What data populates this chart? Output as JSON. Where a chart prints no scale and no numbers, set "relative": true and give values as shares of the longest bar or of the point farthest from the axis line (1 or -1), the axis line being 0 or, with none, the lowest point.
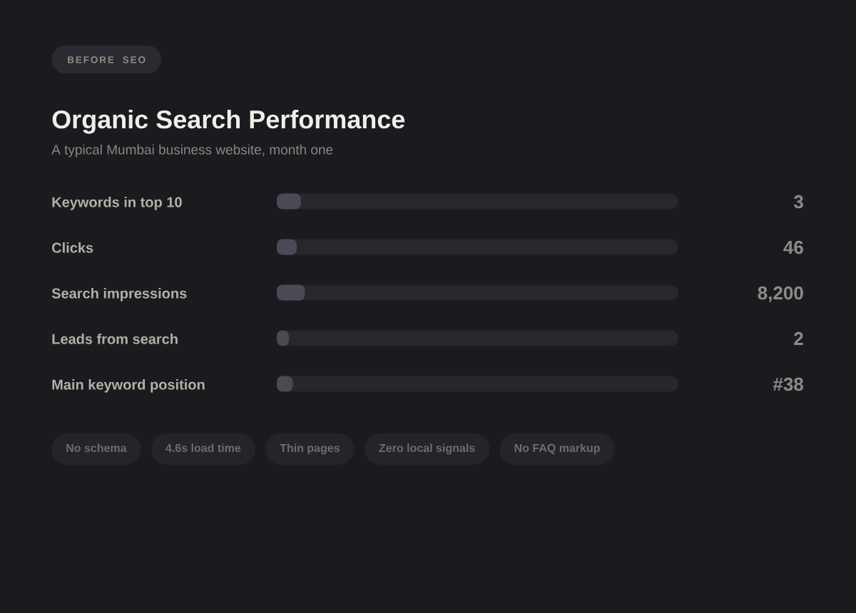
{
  "chart_data": {
    "type": "bar",
    "orientation": "horizontal",
    "relative": true,
    "title": "Organic Search Performance",
    "subtitle": "A typical Mumbai business website, month one",
    "categories": [
      "Keywords in top 10",
      "Clicks",
      "Search impressions",
      "Leads from search",
      "Main keyword position"
    ],
    "values": [
      0.86,
      0.71,
      1,
      0.43,
      0.57
    ],
    "color": "#4a4a55",
    "annotations": [
      "BEFORE SEO",
      "No schema",
      "4.6s load time",
      "Thin pages",
      "Zero local signals",
      "No FAQ markup",
      "3",
      "46",
      "8,200",
      "2",
      "#38"
    ]
  }
}
